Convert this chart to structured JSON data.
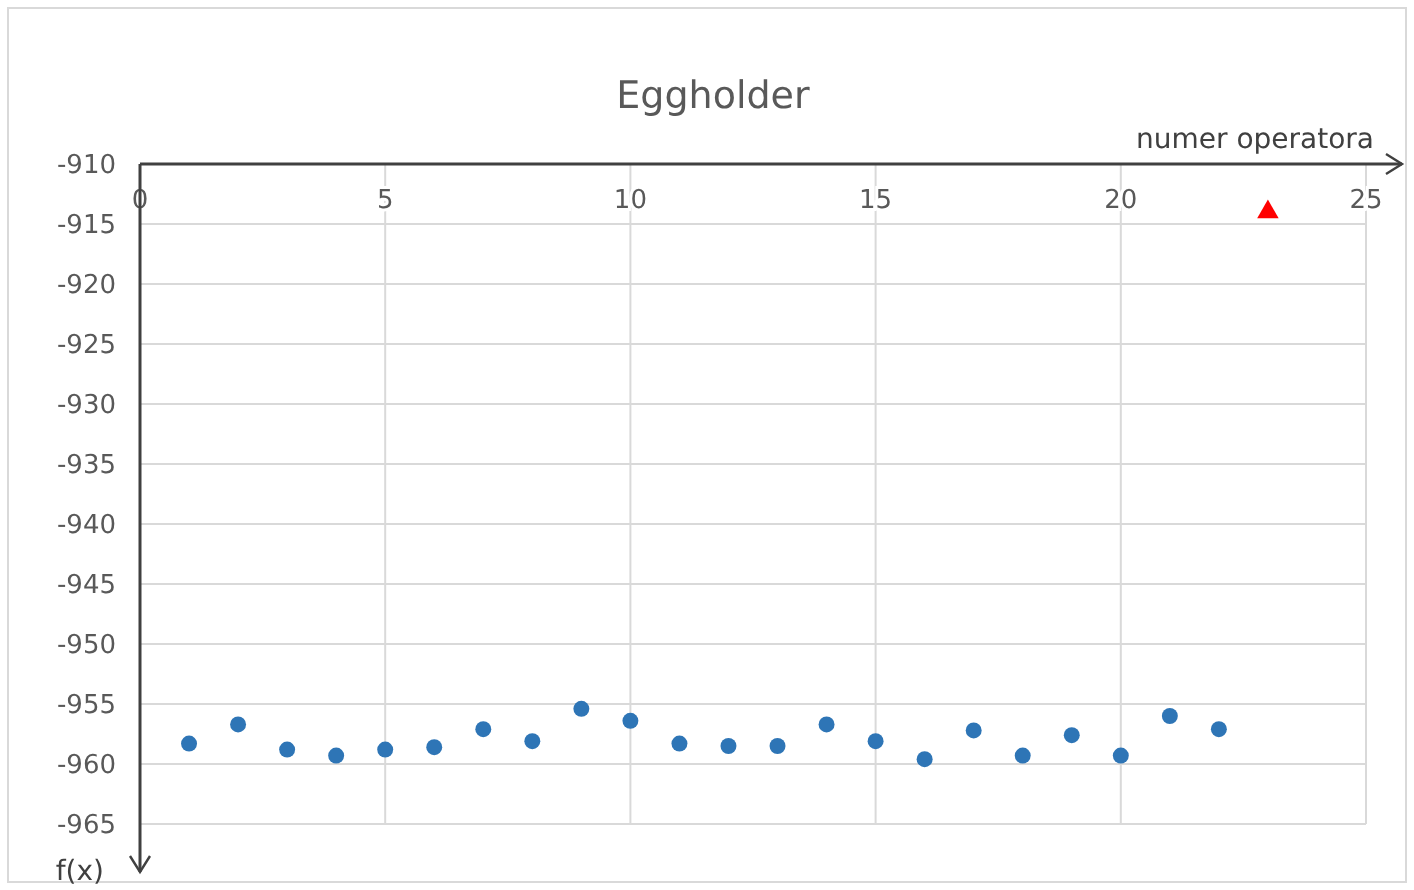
{
  "chart_data": {
    "type": "scatter",
    "title": "Eggholder",
    "xlabel": "numer operatora",
    "ylabel": "f(x)",
    "xlim": [
      0,
      25
    ],
    "xticks": [
      0,
      5,
      10,
      15,
      20,
      25
    ],
    "ylim": [
      -965,
      -910
    ],
    "yticks": [
      -910,
      -915,
      -920,
      -925,
      -930,
      -935,
      -940,
      -945,
      -950,
      -955,
      -960,
      -965
    ],
    "grid": true,
    "series": [
      {
        "color": "#2e75b6",
        "marker": "circle",
        "x": [
          1,
          2,
          3,
          4,
          5,
          6,
          7,
          8,
          9,
          10,
          11,
          12,
          13,
          14,
          15,
          16,
          17,
          18,
          19,
          20,
          21,
          22
        ],
        "values": [
          -958.3,
          -956.7,
          -958.8,
          -959.3,
          -958.8,
          -958.6,
          -957.1,
          -958.1,
          -955.4,
          -956.4,
          -958.3,
          -958.5,
          -958.5,
          -956.7,
          -958.1,
          -959.6,
          -957.2,
          -959.3,
          -957.6,
          -959.3,
          -956.0,
          -957.1
        ]
      },
      {
        "color": "#ff0000",
        "marker": "triangle",
        "x": [
          23
        ],
        "values": [
          -914
        ]
      }
    ]
  }
}
